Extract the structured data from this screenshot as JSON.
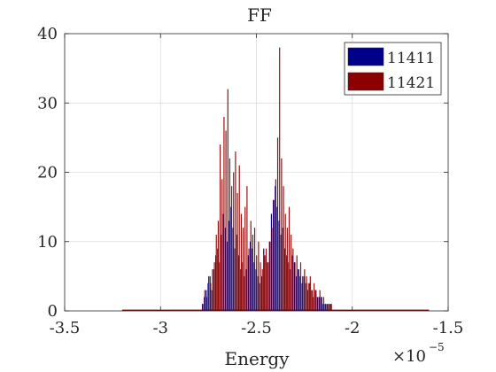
{
  "chart_data": {
    "type": "bar",
    "title": "FF",
    "xlabel": "Energy",
    "ylabel": "",
    "x_scale_label": "×10",
    "x_scale_exponent": "−5",
    "xlim": [
      -3.5,
      -1.5
    ],
    "ylim": [
      0,
      40
    ],
    "xticks": [
      -3.5,
      -3,
      -2.5,
      -2,
      -1.5
    ],
    "xtick_labels": [
      "-3.5",
      "-3",
      "-2.5",
      "-2",
      "-1.5"
    ],
    "yticks": [
      0,
      10,
      20,
      30,
      40
    ],
    "ytick_labels": [
      "0",
      "10",
      "20",
      "30",
      "40"
    ],
    "grid": true,
    "legend_position": "top-right",
    "x": [
      -2.78,
      -2.77,
      -2.76,
      -2.75,
      -2.74,
      -2.73,
      -2.72,
      -2.71,
      -2.7,
      -2.69,
      -2.68,
      -2.67,
      -2.66,
      -2.65,
      -2.64,
      -2.63,
      -2.62,
      -2.61,
      -2.6,
      -2.59,
      -2.58,
      -2.57,
      -2.56,
      -2.55,
      -2.54,
      -2.53,
      -2.52,
      -2.51,
      -2.5,
      -2.49,
      -2.48,
      -2.47,
      -2.46,
      -2.45,
      -2.44,
      -2.43,
      -2.42,
      -2.41,
      -2.4,
      -2.39,
      -2.38,
      -2.37,
      -2.36,
      -2.35,
      -2.34,
      -2.33,
      -2.32,
      -2.31,
      -2.3,
      -2.29,
      -2.28,
      -2.27,
      -2.26,
      -2.25,
      -2.24,
      -2.23,
      -2.22,
      -2.21,
      -2.2,
      -2.19,
      -2.18,
      -2.17,
      -2.16,
      -2.15,
      -2.14,
      -2.13,
      -2.12,
      -2.11
    ],
    "series": [
      {
        "name": "11411",
        "color": "#00008B",
        "values": [
          1,
          2,
          3,
          4,
          5,
          3,
          6,
          8,
          9,
          7,
          11,
          14,
          12,
          10,
          13,
          15,
          12,
          9,
          11,
          8,
          6,
          7,
          5,
          6,
          8,
          10,
          9,
          7,
          6,
          5,
          4,
          5,
          9,
          8,
          7,
          10,
          14,
          16,
          18,
          15,
          13,
          11,
          12,
          9,
          8,
          7,
          6,
          8,
          7,
          5,
          6,
          5,
          4,
          5,
          4,
          3,
          4,
          3,
          2,
          3,
          2,
          2,
          2,
          1,
          1,
          1,
          1,
          1
        ]
      },
      {
        "name": "11421",
        "color": "#8B0000",
        "values": [
          1,
          3,
          2,
          5,
          4,
          6,
          7,
          11,
          13,
          24,
          19,
          28,
          26,
          32,
          22,
          18,
          20,
          23,
          17,
          21,
          14,
          12,
          15,
          18,
          9,
          13,
          11,
          12,
          8,
          10,
          7,
          6,
          8,
          9,
          7,
          10,
          12,
          16,
          19,
          25,
          38,
          22,
          18,
          14,
          12,
          15,
          11,
          9,
          7,
          8,
          6,
          7,
          5,
          6,
          5,
          4,
          5,
          3,
          4,
          3,
          2,
          3,
          2,
          2,
          1,
          1,
          1,
          1
        ]
      }
    ],
    "tails": [
      {
        "series": "11411",
        "xmin": -3.2,
        "xmax": -1.6,
        "value": 0.05
      },
      {
        "series": "11421",
        "xmin": -3.2,
        "xmax": -1.6,
        "value": 0.05
      }
    ]
  }
}
